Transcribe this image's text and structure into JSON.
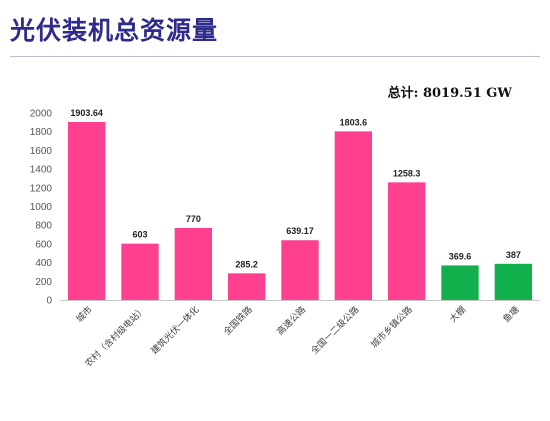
{
  "slide": {
    "title": "光伏装机总资源量",
    "total_text": "总计:  8019.51  GW"
  },
  "colors": {
    "primary_bar": "#ff3f8f",
    "secondary_bar": "#12b04c",
    "title": "#2e2b8c",
    "axis": "#c8c8c8"
  },
  "chart_data": {
    "type": "bar",
    "title": "",
    "xlabel": "",
    "ylabel": "",
    "ylim": [
      0,
      2000
    ],
    "yticks": [
      0,
      200,
      400,
      600,
      800,
      1000,
      1200,
      1400,
      1600,
      1800,
      2000
    ],
    "grid": false,
    "categories": [
      "城市",
      "农村（含村级电站）",
      "建筑光伏一体化",
      "全国铁路",
      "高速公路",
      "全国一二级公路",
      "城市乡镇公路",
      "大棚",
      "鱼塘"
    ],
    "values": [
      1903.64,
      603,
      770,
      285.2,
      639.17,
      1803.6,
      1258.3,
      369.6,
      387
    ],
    "data_labels": [
      "1903.64",
      "603",
      "770",
      "285.2",
      "639.17",
      "1803.6",
      "1258.3",
      "369.6",
      "387"
    ],
    "bar_colors": [
      "pink",
      "pink",
      "pink",
      "pink",
      "pink",
      "pink",
      "pink",
      "green",
      "green"
    ]
  }
}
